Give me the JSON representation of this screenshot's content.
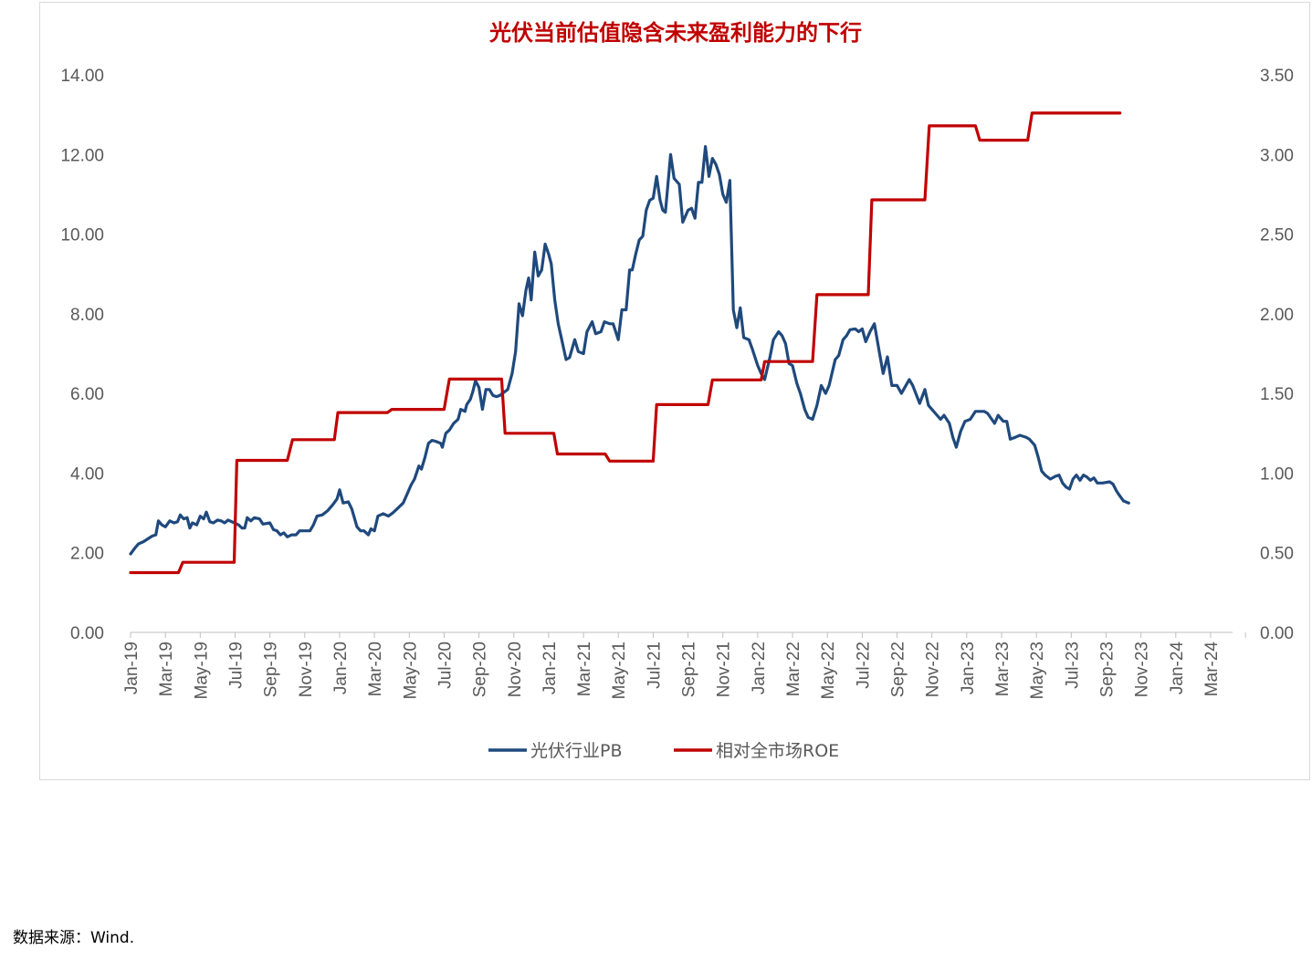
{
  "chart_data": {
    "type": "line",
    "title": "光伏当前估值隐含未来盈利能力的下行",
    "xlabel": "",
    "ylabel": "",
    "x_ticks": [
      "Jan-19",
      "Mar-19",
      "May-19",
      "Jul-19",
      "Sep-19",
      "Nov-19",
      "Jan-20",
      "Mar-20",
      "May-20",
      "Jul-20",
      "Sep-20",
      "Nov-20",
      "Jan-21",
      "Mar-21",
      "May-21",
      "Jul-21",
      "Sep-21",
      "Nov-21",
      "Jan-22",
      "Mar-22",
      "May-22",
      "Jul-22",
      "Sep-22",
      "Nov-22",
      "Jan-23",
      "Mar-23",
      "May-23",
      "Jul-23",
      "Sep-23",
      "Nov-23",
      "Jan-24",
      "Mar-24"
    ],
    "xlim": [
      "2019-01",
      "2024-04"
    ],
    "y_left": {
      "ylim": [
        0,
        14
      ],
      "ticks": [
        "0.00",
        "2.00",
        "4.00",
        "6.00",
        "8.00",
        "10.00",
        "12.00",
        "14.00"
      ]
    },
    "y_right": {
      "ylim": [
        0,
        3.5
      ],
      "ticks": [
        "0.00",
        "0.50",
        "1.00",
        "1.50",
        "2.00",
        "2.50",
        "3.00",
        "3.50"
      ]
    },
    "grid": false,
    "legend": "bottom",
    "series": [
      {
        "name": "光伏行业PB",
        "axis": "left",
        "color": "#1f497d",
        "x_unit": "months since Jan-19",
        "points": [
          [
            0.0,
            1.97
          ],
          [
            0.25,
            2.12
          ],
          [
            0.45,
            2.22
          ],
          [
            0.75,
            2.28
          ],
          [
            1.0,
            2.35
          ],
          [
            1.25,
            2.42
          ],
          [
            1.45,
            2.45
          ],
          [
            1.6,
            2.8
          ],
          [
            1.8,
            2.7
          ],
          [
            2.0,
            2.65
          ],
          [
            2.25,
            2.8
          ],
          [
            2.5,
            2.75
          ],
          [
            2.7,
            2.78
          ],
          [
            2.85,
            2.95
          ],
          [
            3.05,
            2.85
          ],
          [
            3.25,
            2.88
          ],
          [
            3.4,
            2.62
          ],
          [
            3.55,
            2.75
          ],
          [
            3.8,
            2.7
          ],
          [
            4.0,
            2.92
          ],
          [
            4.2,
            2.85
          ],
          [
            4.35,
            3.02
          ],
          [
            4.55,
            2.78
          ],
          [
            4.75,
            2.75
          ],
          [
            5.0,
            2.82
          ],
          [
            5.2,
            2.8
          ],
          [
            5.4,
            2.75
          ],
          [
            5.6,
            2.82
          ],
          [
            5.9,
            2.76
          ],
          [
            6.2,
            2.7
          ],
          [
            6.4,
            2.62
          ],
          [
            6.55,
            2.62
          ],
          [
            6.7,
            2.88
          ],
          [
            6.9,
            2.8
          ],
          [
            7.1,
            2.88
          ],
          [
            7.4,
            2.85
          ],
          [
            7.6,
            2.72
          ],
          [
            8.0,
            2.75
          ],
          [
            8.2,
            2.58
          ],
          [
            8.4,
            2.55
          ],
          [
            8.6,
            2.45
          ],
          [
            8.8,
            2.5
          ],
          [
            9.0,
            2.4
          ],
          [
            9.25,
            2.45
          ],
          [
            9.5,
            2.45
          ],
          [
            9.7,
            2.55
          ],
          [
            10.0,
            2.55
          ],
          [
            10.3,
            2.55
          ],
          [
            10.5,
            2.7
          ],
          [
            10.7,
            2.92
          ],
          [
            11.0,
            2.95
          ],
          [
            11.3,
            3.05
          ],
          [
            11.6,
            3.2
          ],
          [
            11.85,
            3.35
          ],
          [
            12.0,
            3.58
          ],
          [
            12.2,
            3.25
          ],
          [
            12.5,
            3.28
          ],
          [
            12.7,
            3.1
          ],
          [
            13.0,
            2.65
          ],
          [
            13.2,
            2.55
          ],
          [
            13.4,
            2.55
          ],
          [
            13.65,
            2.45
          ],
          [
            13.8,
            2.6
          ],
          [
            14.0,
            2.55
          ],
          [
            14.2,
            2.92
          ],
          [
            14.5,
            2.98
          ],
          [
            14.8,
            2.92
          ],
          [
            15.05,
            3.0
          ],
          [
            15.3,
            3.1
          ],
          [
            15.65,
            3.25
          ],
          [
            15.9,
            3.5
          ],
          [
            16.1,
            3.7
          ],
          [
            16.3,
            3.85
          ],
          [
            16.55,
            4.18
          ],
          [
            16.7,
            4.1
          ],
          [
            16.9,
            4.4
          ],
          [
            17.1,
            4.75
          ],
          [
            17.3,
            4.82
          ],
          [
            17.5,
            4.8
          ],
          [
            17.8,
            4.75
          ],
          [
            17.9,
            4.65
          ],
          [
            18.1,
            5.0
          ],
          [
            18.3,
            5.08
          ],
          [
            18.55,
            5.25
          ],
          [
            18.8,
            5.35
          ],
          [
            18.95,
            5.6
          ],
          [
            19.2,
            5.55
          ],
          [
            19.3,
            5.72
          ],
          [
            19.5,
            5.85
          ],
          [
            19.65,
            6.05
          ],
          [
            19.8,
            6.32
          ],
          [
            20.0,
            6.15
          ],
          [
            20.2,
            5.6
          ],
          [
            20.4,
            6.1
          ],
          [
            20.6,
            6.1
          ],
          [
            20.8,
            5.95
          ],
          [
            21.0,
            5.92
          ],
          [
            21.2,
            5.95
          ],
          [
            21.5,
            6.05
          ],
          [
            21.65,
            6.1
          ],
          [
            21.9,
            6.5
          ],
          [
            22.1,
            7.05
          ],
          [
            22.3,
            8.25
          ],
          [
            22.5,
            7.95
          ],
          [
            22.7,
            8.6
          ],
          [
            22.85,
            8.9
          ],
          [
            23.0,
            8.35
          ],
          [
            23.2,
            9.55
          ],
          [
            23.4,
            8.95
          ],
          [
            23.6,
            9.1
          ],
          [
            23.8,
            9.75
          ],
          [
            24.0,
            9.5
          ],
          [
            24.15,
            9.25
          ],
          [
            24.35,
            8.35
          ],
          [
            24.55,
            7.75
          ],
          [
            24.7,
            7.45
          ],
          [
            25.0,
            6.85
          ],
          [
            25.2,
            6.9
          ],
          [
            25.5,
            7.35
          ],
          [
            25.7,
            7.05
          ],
          [
            26.0,
            7.0
          ],
          [
            26.2,
            7.55
          ],
          [
            26.5,
            7.8
          ],
          [
            26.7,
            7.5
          ],
          [
            27.0,
            7.55
          ],
          [
            27.2,
            7.8
          ],
          [
            27.5,
            7.75
          ],
          [
            27.7,
            7.75
          ],
          [
            28.0,
            7.35
          ],
          [
            28.2,
            8.1
          ],
          [
            28.45,
            8.1
          ],
          [
            28.65,
            9.1
          ],
          [
            28.8,
            9.1
          ],
          [
            29.0,
            9.5
          ],
          [
            29.2,
            9.85
          ],
          [
            29.4,
            9.95
          ],
          [
            29.6,
            10.6
          ],
          [
            29.8,
            10.85
          ],
          [
            30.0,
            10.9
          ],
          [
            30.2,
            11.45
          ],
          [
            30.4,
            10.85
          ],
          [
            30.55,
            10.6
          ],
          [
            30.7,
            10.55
          ],
          [
            31.0,
            12.0
          ],
          [
            31.2,
            11.4
          ],
          [
            31.5,
            11.25
          ],
          [
            31.7,
            10.3
          ],
          [
            32.0,
            10.6
          ],
          [
            32.2,
            10.65
          ],
          [
            32.4,
            10.4
          ],
          [
            32.6,
            11.3
          ],
          [
            32.8,
            11.3
          ],
          [
            33.0,
            12.2
          ],
          [
            33.2,
            11.45
          ],
          [
            33.4,
            11.9
          ],
          [
            33.6,
            11.75
          ],
          [
            33.8,
            11.5
          ],
          [
            34.0,
            11.0
          ],
          [
            34.2,
            10.8
          ],
          [
            34.4,
            11.35
          ],
          [
            34.6,
            8.1
          ],
          [
            34.8,
            7.65
          ],
          [
            35.0,
            8.15
          ],
          [
            35.2,
            7.4
          ],
          [
            35.5,
            7.35
          ],
          [
            35.7,
            7.1
          ],
          [
            36.0,
            6.7
          ],
          [
            36.2,
            6.5
          ],
          [
            36.4,
            6.35
          ],
          [
            36.7,
            6.9
          ],
          [
            36.9,
            7.35
          ],
          [
            37.2,
            7.55
          ],
          [
            37.4,
            7.45
          ],
          [
            37.6,
            7.25
          ],
          [
            37.8,
            6.75
          ],
          [
            38.0,
            6.7
          ],
          [
            38.25,
            6.25
          ],
          [
            38.45,
            6.0
          ],
          [
            38.7,
            5.6
          ],
          [
            38.9,
            5.4
          ],
          [
            39.15,
            5.35
          ],
          [
            39.4,
            5.7
          ],
          [
            39.65,
            6.2
          ],
          [
            39.9,
            6.0
          ],
          [
            40.1,
            6.2
          ],
          [
            40.45,
            6.85
          ],
          [
            40.65,
            6.95
          ],
          [
            40.9,
            7.35
          ],
          [
            41.1,
            7.45
          ],
          [
            41.3,
            7.6
          ],
          [
            41.6,
            7.62
          ],
          [
            41.8,
            7.55
          ],
          [
            42.0,
            7.62
          ],
          [
            42.2,
            7.3
          ],
          [
            42.45,
            7.55
          ],
          [
            42.7,
            7.75
          ],
          [
            43.0,
            7.0
          ],
          [
            43.2,
            6.5
          ],
          [
            43.45,
            6.92
          ],
          [
            43.7,
            6.2
          ],
          [
            44.0,
            6.2
          ],
          [
            44.25,
            6.0
          ],
          [
            44.7,
            6.35
          ],
          [
            44.9,
            6.2
          ],
          [
            45.3,
            5.75
          ],
          [
            45.6,
            6.1
          ],
          [
            45.8,
            5.7
          ],
          [
            46.2,
            5.5
          ],
          [
            46.5,
            5.35
          ],
          [
            46.7,
            5.45
          ],
          [
            47.0,
            5.25
          ],
          [
            47.2,
            4.9
          ],
          [
            47.4,
            4.65
          ],
          [
            47.65,
            5.05
          ],
          [
            47.9,
            5.3
          ],
          [
            48.2,
            5.35
          ],
          [
            48.5,
            5.55
          ],
          [
            48.75,
            5.55
          ],
          [
            49.0,
            5.55
          ],
          [
            49.2,
            5.5
          ],
          [
            49.6,
            5.25
          ],
          [
            49.8,
            5.45
          ],
          [
            50.1,
            5.3
          ],
          [
            50.3,
            5.3
          ],
          [
            50.5,
            4.85
          ],
          [
            50.8,
            4.9
          ],
          [
            51.05,
            4.95
          ],
          [
            51.4,
            4.9
          ],
          [
            51.6,
            4.85
          ],
          [
            51.9,
            4.7
          ],
          [
            52.1,
            4.4
          ],
          [
            52.3,
            4.05
          ],
          [
            52.5,
            3.95
          ],
          [
            52.8,
            3.85
          ],
          [
            53.1,
            3.92
          ],
          [
            53.3,
            3.95
          ],
          [
            53.5,
            3.75
          ],
          [
            53.7,
            3.65
          ],
          [
            53.9,
            3.6
          ],
          [
            54.1,
            3.85
          ],
          [
            54.3,
            3.95
          ],
          [
            54.5,
            3.82
          ],
          [
            54.7,
            3.95
          ],
          [
            54.9,
            3.9
          ],
          [
            55.1,
            3.82
          ],
          [
            55.3,
            3.88
          ],
          [
            55.5,
            3.75
          ],
          [
            55.8,
            3.75
          ],
          [
            56.2,
            3.78
          ],
          [
            56.4,
            3.72
          ],
          [
            56.6,
            3.55
          ],
          [
            56.8,
            3.42
          ],
          [
            57.0,
            3.3
          ],
          [
            57.3,
            3.25
          ]
        ]
      },
      {
        "name": "相对全市场ROE",
        "axis": "right",
        "color": "#c00000",
        "x_unit": "months since Jan-19",
        "points": [
          [
            0.0,
            0.375
          ],
          [
            2.75,
            0.375
          ],
          [
            3.0,
            0.44
          ],
          [
            5.95,
            0.44
          ],
          [
            6.1,
            1.08
          ],
          [
            9.0,
            1.08
          ],
          [
            9.3,
            1.21
          ],
          [
            11.7,
            1.21
          ],
          [
            11.9,
            1.38
          ],
          [
            14.75,
            1.38
          ],
          [
            15.0,
            1.4
          ],
          [
            18.0,
            1.4
          ],
          [
            18.3,
            1.59
          ],
          [
            21.3,
            1.59
          ],
          [
            21.5,
            1.25
          ],
          [
            24.3,
            1.25
          ],
          [
            24.5,
            1.12
          ],
          [
            27.25,
            1.12
          ],
          [
            27.5,
            1.075
          ],
          [
            30.0,
            1.075
          ],
          [
            30.2,
            1.43
          ],
          [
            33.15,
            1.43
          ],
          [
            33.4,
            1.585
          ],
          [
            36.2,
            1.585
          ],
          [
            36.4,
            1.7
          ],
          [
            39.15,
            1.7
          ],
          [
            39.4,
            2.12
          ],
          [
            42.35,
            2.12
          ],
          [
            42.55,
            2.715
          ],
          [
            45.6,
            2.715
          ],
          [
            45.85,
            3.18
          ],
          [
            48.5,
            3.18
          ],
          [
            48.75,
            3.09
          ],
          [
            51.5,
            3.09
          ],
          [
            51.75,
            3.26
          ],
          [
            56.8,
            3.26
          ]
        ]
      }
    ]
  },
  "source_note": "数据来源：Wind."
}
